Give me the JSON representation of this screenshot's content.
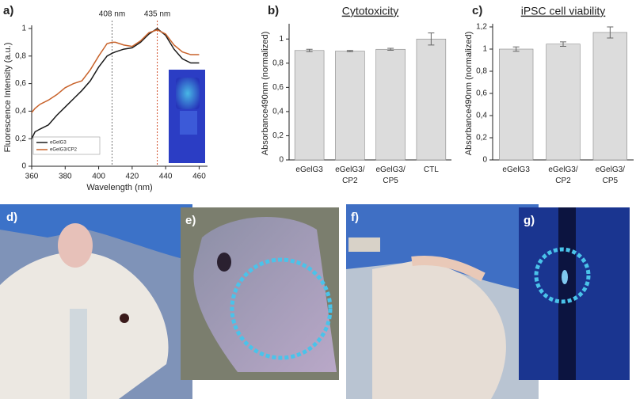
{
  "chart_data": [
    {
      "type": "line",
      "panel": "a)",
      "xlabel": "Wavelength (nm)",
      "ylabel": "Fluorescence Intensity (a.u.)",
      "x": [
        360,
        362,
        365,
        370,
        375,
        380,
        385,
        390,
        395,
        400,
        405,
        408,
        410,
        415,
        420,
        425,
        430,
        435,
        440,
        445,
        450,
        455,
        460
      ],
      "series": [
        {
          "name": "eGelG3",
          "color": "#1a1a1a",
          "values": [
            0.2,
            0.25,
            0.27,
            0.3,
            0.37,
            0.43,
            0.49,
            0.55,
            0.62,
            0.72,
            0.8,
            0.82,
            0.83,
            0.85,
            0.86,
            0.9,
            0.96,
            1.0,
            0.95,
            0.85,
            0.78,
            0.75,
            0.75
          ]
        },
        {
          "name": "eGelG3/CP2",
          "color": "#c8622a",
          "values": [
            0.39,
            0.42,
            0.45,
            0.48,
            0.52,
            0.57,
            0.6,
            0.62,
            0.7,
            0.8,
            0.89,
            0.9,
            0.9,
            0.88,
            0.87,
            0.91,
            0.97,
            0.99,
            0.96,
            0.88,
            0.83,
            0.81,
            0.81
          ]
        }
      ],
      "annotations": [
        {
          "x": 408,
          "label": "408 nm",
          "color": "#777777"
        },
        {
          "x": 435,
          "label": "435 nm",
          "color": "#d0502a"
        }
      ],
      "xlim": [
        360,
        465
      ],
      "xticks": [
        360,
        380,
        400,
        420,
        440,
        460
      ],
      "ylim": [
        0,
        1
      ],
      "yticks": [
        0,
        {
          "value": 0.2,
          "label": "0,2"
        },
        {
          "value": 0.4,
          "label": "0,4"
        },
        {
          "value": 0.6,
          "label": "0,6"
        },
        {
          "value": 0.8,
          "label": "0,8"
        },
        1
      ]
    },
    {
      "type": "bar",
      "panel": "b)",
      "title": "Cytotoxicity",
      "ylabel": "Absorbance490nm (normalized)",
      "color": "#dcdcdc",
      "categories": [
        "eGelG3",
        "eGelG3/\nCP2",
        "eGelG3/\nCP5",
        "CTL"
      ],
      "values": [
        0.905,
        0.9,
        0.915,
        1.0
      ],
      "errors": [
        0.01,
        0.005,
        0.008,
        0.05
      ],
      "ylim": [
        0,
        1.1
      ],
      "yticks": [
        0,
        {
          "value": 0.2,
          "label": "0,2"
        },
        {
          "value": 0.4,
          "label": "0,4"
        },
        {
          "value": 0.6,
          "label": "0,6"
        },
        {
          "value": 0.8,
          "label": "0,8"
        },
        1
      ]
    },
    {
      "type": "bar",
      "panel": "c)",
      "title": "iPSC cell viability",
      "ylabel": "Absorbance490nm (normalized)",
      "color": "#dcdcdc",
      "categories": [
        "eGelG3",
        "eGelG3/\nCP2",
        "eGelG3/\nCP5"
      ],
      "values": [
        1.0,
        1.045,
        1.15
      ],
      "errors": [
        0.02,
        0.02,
        0.05
      ],
      "ylim": [
        0,
        1.2
      ],
      "yticks": [
        0,
        {
          "value": 0.2,
          "label": "0,2"
        },
        {
          "value": 0.4,
          "label": "0,4"
        },
        {
          "value": 0.6,
          "label": "0,6"
        },
        {
          "value": 0.8,
          "label": "0,8"
        },
        1,
        {
          "value": 1.2,
          "label": "1,2"
        }
      ]
    }
  ],
  "photo_labels": [
    "d)",
    "e)",
    "f)",
    "g)"
  ]
}
